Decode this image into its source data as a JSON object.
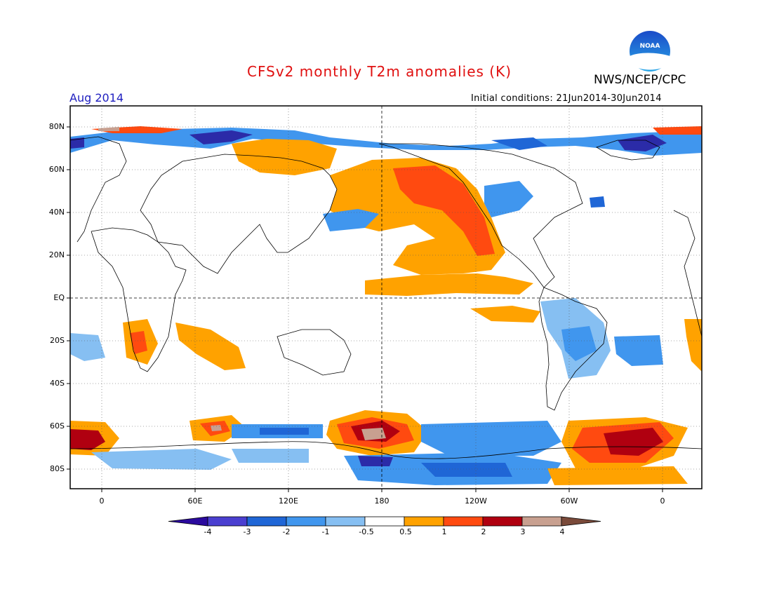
{
  "header": {
    "title": "CFSv2 monthly T2m anomalies (K)",
    "org": "NWS/NCEP/CPC",
    "month": "Aug 2014",
    "initial_conditions": "Initial conditions: 21Jun2014-30Jun2014",
    "logo_text": "NOAA"
  },
  "colors": {
    "title": "#e01010",
    "month": "#2020c0",
    "land_outline": "#000000",
    "grid": "#555555"
  },
  "map": {
    "lat_labels": [
      "80N",
      "60N",
      "40N",
      "20N",
      "EQ",
      "20S",
      "40S",
      "60S",
      "80S"
    ],
    "lon_labels": [
      "0",
      "60E",
      "120E",
      "180",
      "120W",
      "60W",
      "0"
    ]
  },
  "colorbar": {
    "labels": [
      "-4",
      "-3",
      "-2",
      "-1",
      "-0.5",
      "0.5",
      "1",
      "2",
      "3",
      "4"
    ],
    "colors": [
      "#2b0a9e",
      "#4a3fd0",
      "#1f66d6",
      "#4096ee",
      "#86bff2",
      "#ffffff",
      "#ffa200",
      "#ff4a10",
      "#b00010",
      "#c8a090",
      "#7a4a3a"
    ]
  }
}
